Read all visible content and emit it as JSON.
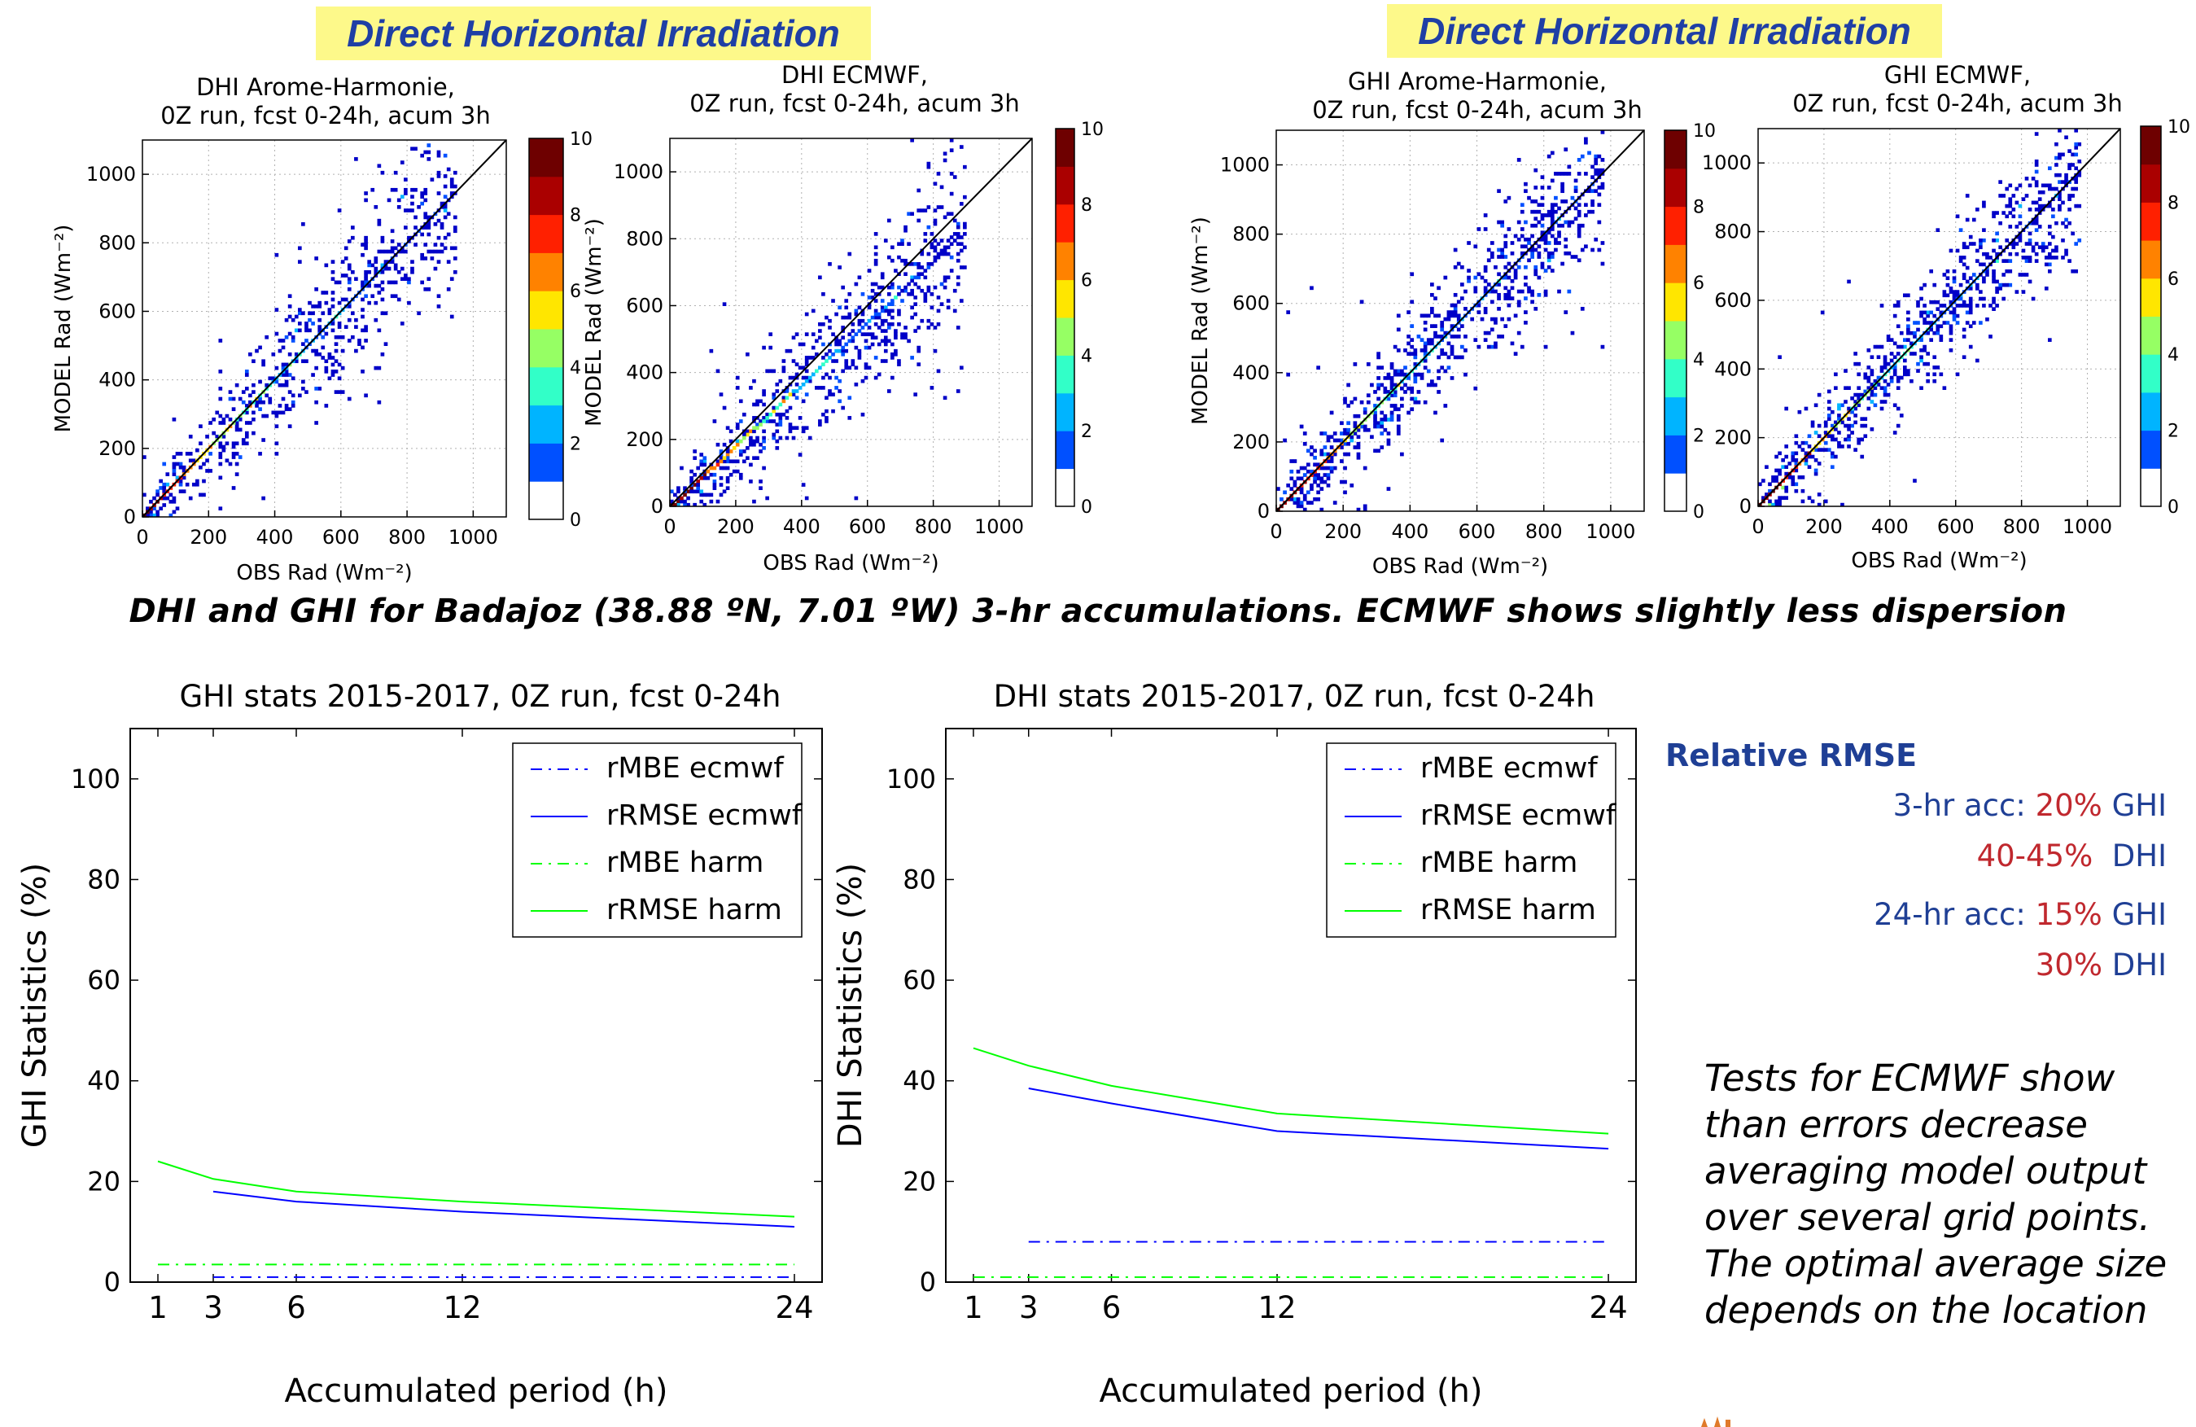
{
  "banners": {
    "left": "Direct Horizontal Irradiation",
    "right": "Direct Horizontal Irradiation"
  },
  "caption": "DHI and GHI for  Badajoz (38.88 ºN, 7.01 ºW) 3-hr accumulations. ECMWF shows slightly less dispersion",
  "side_panel": {
    "heading": "Relative RMSE",
    "lines": [
      {
        "label": "3-hr acc: ",
        "value": "20%",
        "unit": " GHI"
      },
      {
        "label": "",
        "value": "40-45%",
        "unit": "  DHI"
      },
      {
        "label": "24-hr acc: ",
        "value": "15%",
        "unit": " GHI"
      },
      {
        "label": "",
        "value": "30%",
        "unit": " DHI"
      }
    ],
    "note": "Tests for ECMWF show than errors decrease averaging model output over several grid points. The optimal average size depends on the location"
  },
  "colors": {
    "banner_bg": "#fdf98a",
    "banner_text": "#1f3fa5",
    "stats_blue": "#1f3f95",
    "stats_red": "#c0282e",
    "ecmwf": "#0000ff",
    "harm": "#00ff00",
    "colormap": [
      "#ffffff",
      "#0000c8",
      "#0050ff",
      "#00b4ff",
      "#32ffc8",
      "#96ff64",
      "#ffe600",
      "#ff8200",
      "#ff2000",
      "#aa0000",
      "#6e0000"
    ]
  },
  "chart_data": [
    {
      "type": "heatmap",
      "id": "dhi-arome",
      "title": "DHI Arome-Harmonie,\n0Z run, fcst 0-24h, acum 3h",
      "xlabel": "OBS   Rad (Wm⁻²)",
      "ylabel": "MODEL  Rad (Wm⁻²)",
      "xlim": [
        0,
        1100
      ],
      "ylim": [
        0,
        1100
      ],
      "xticks": [
        "0",
        "200",
        "400",
        "600",
        "800",
        "1000"
      ],
      "yticks": [
        "0",
        "200",
        "400",
        "600",
        "800",
        "1000"
      ],
      "colorbar": {
        "range": [
          0,
          10
        ],
        "ticks": [
          "0",
          "2",
          "4",
          "6",
          "8",
          "10"
        ]
      },
      "data_max": 950,
      "slope": 1.0,
      "spread": 0.13,
      "n_points": 650,
      "seed": 11,
      "identity_line": true
    },
    {
      "type": "heatmap",
      "id": "dhi-ecmwf",
      "title": "DHI ECMWF,\n0Z run, fcst 0-24h, acum 3h",
      "xlabel": "OBS   Rad (Wm⁻²)",
      "ylabel": "MODEL  Rad (Wm⁻²)",
      "xlim": [
        0,
        1100
      ],
      "ylim": [
        0,
        1100
      ],
      "xticks": [
        "0",
        "200",
        "400",
        "600",
        "800",
        "1000"
      ],
      "yticks": [
        "0",
        "200",
        "400",
        "600",
        "800",
        "1000"
      ],
      "colorbar": {
        "range": [
          0,
          10
        ],
        "ticks": [
          "0",
          "2",
          "4",
          "6",
          "8",
          "10"
        ]
      },
      "data_max": 900,
      "slope": 0.92,
      "spread": 0.11,
      "n_points": 700,
      "seed": 23,
      "identity_line": true
    },
    {
      "type": "heatmap",
      "id": "ghi-arome",
      "title": "GHI Arome-Harmonie,\n0Z run, fcst 0-24h, acum 3h",
      "xlabel": "OBS   Rad (Wm⁻²)",
      "ylabel": "MODEL  Rad (Wm⁻²)",
      "xlim": [
        0,
        1100
      ],
      "ylim": [
        0,
        1100
      ],
      "xticks": [
        "0",
        "200",
        "400",
        "600",
        "800",
        "1000"
      ],
      "yticks": [
        "0",
        "200",
        "400",
        "600",
        "800",
        "1000"
      ],
      "colorbar": {
        "range": [
          0,
          10
        ],
        "ticks": [
          "0",
          "2",
          "4",
          "6",
          "8",
          "10"
        ]
      },
      "data_max": 980,
      "slope": 1.0,
      "spread": 0.09,
      "n_points": 800,
      "seed": 37,
      "identity_line": true
    },
    {
      "type": "heatmap",
      "id": "ghi-ecmwf",
      "title": "GHI ECMWF,\n0Z run, fcst 0-24h, acum 3h",
      "xlabel": "OBS   Rad (Wm⁻²)",
      "ylabel": "",
      "xlim": [
        0,
        1100
      ],
      "ylim": [
        0,
        1100
      ],
      "xticks": [
        "0",
        "200",
        "400",
        "600",
        "800",
        "1000"
      ],
      "yticks": [
        "0",
        "200",
        "400",
        "600",
        "800",
        "1000"
      ],
      "colorbar": {
        "range": [
          0,
          10
        ],
        "ticks": [
          "0",
          "2",
          "4",
          "6",
          "8",
          "10"
        ]
      },
      "data_max": 980,
      "slope": 1.0,
      "spread": 0.08,
      "n_points": 800,
      "seed": 53,
      "identity_line": true
    },
    {
      "type": "line",
      "id": "ghi-stats",
      "title": "GHI stats 2015-2017, 0Z run, fcst 0-24h",
      "xlabel": "Accumulated period (h)",
      "ylabel": "GHI Statistics (%)",
      "xlim": [
        0,
        25
      ],
      "ylim": [
        0,
        110
      ],
      "xticks": [
        1,
        3,
        6,
        12,
        24
      ],
      "yticks": [
        0,
        20,
        40,
        60,
        80,
        100
      ],
      "legend": "top-right",
      "series": [
        {
          "name": "rMBE ecmwf",
          "style": "dashdot",
          "color": "#0000ff",
          "x": [
            3,
            6,
            12,
            24
          ],
          "y": [
            1,
            1,
            1,
            1
          ]
        },
        {
          "name": "rRMSE ecmwf",
          "style": "solid",
          "color": "#0000ff",
          "x": [
            3,
            6,
            12,
            24
          ],
          "y": [
            18,
            16,
            14,
            11
          ]
        },
        {
          "name": "rMBE harm",
          "style": "dashdot",
          "color": "#00ff00",
          "x": [
            1,
            3,
            6,
            12,
            24
          ],
          "y": [
            3.5,
            3.5,
            3.5,
            3.5,
            3.5
          ]
        },
        {
          "name": "rRMSE harm",
          "style": "solid",
          "color": "#00ff00",
          "x": [
            1,
            3,
            6,
            12,
            24
          ],
          "y": [
            24,
            20.5,
            18,
            16,
            13
          ]
        }
      ]
    },
    {
      "type": "line",
      "id": "dhi-stats",
      "title": "DHI stats 2015-2017, 0Z run, fcst 0-24h",
      "xlabel": "Accumulated period (h)",
      "ylabel": "DHI Statistics (%)",
      "xlim": [
        0,
        25
      ],
      "ylim": [
        0,
        110
      ],
      "xticks": [
        1,
        3,
        6,
        12,
        24
      ],
      "yticks": [
        0,
        20,
        40,
        60,
        80,
        100
      ],
      "legend": "top-right",
      "series": [
        {
          "name": "rMBE ecmwf",
          "style": "dashdot",
          "color": "#0000ff",
          "x": [
            3,
            6,
            12,
            24
          ],
          "y": [
            8,
            8,
            8,
            8
          ]
        },
        {
          "name": "rRMSE ecmwf",
          "style": "solid",
          "color": "#0000ff",
          "x": [
            3,
            6,
            12,
            24
          ],
          "y": [
            38.5,
            35.5,
            30,
            26.5
          ]
        },
        {
          "name": "rMBE harm",
          "style": "dashdot",
          "color": "#00ff00",
          "x": [
            1,
            3,
            6,
            12,
            24
          ],
          "y": [
            1,
            1,
            1,
            1,
            1
          ]
        },
        {
          "name": "rRMSE harm",
          "style": "solid",
          "color": "#00ff00",
          "x": [
            1,
            3,
            6,
            12,
            24
          ],
          "y": [
            46.5,
            43,
            39,
            33.5,
            29.5
          ]
        }
      ]
    }
  ]
}
